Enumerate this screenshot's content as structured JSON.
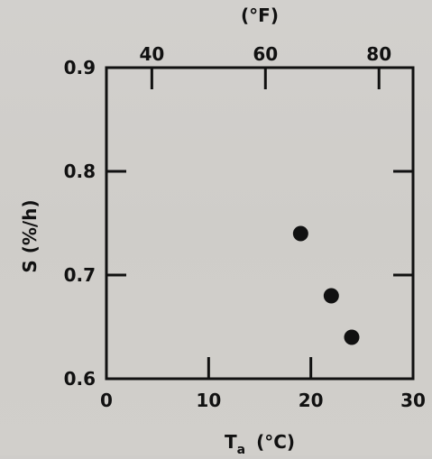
{
  "chart_data": {
    "type": "scatter",
    "title": "",
    "xlabel": "T",
    "xlabel_sub": "a",
    "xlabel_unit": "(°C)",
    "ylabel": "S (%/h)",
    "top_axis_label": "(°F)",
    "xlim": [
      0,
      30
    ],
    "ylim": [
      0.6,
      0.9
    ],
    "x_ticks": [
      0,
      10,
      20,
      30
    ],
    "x_tick_labels": [
      "0",
      "10",
      "20",
      "30"
    ],
    "y_ticks": [
      0.6,
      0.7,
      0.8,
      0.9
    ],
    "y_tick_labels": [
      "0.6",
      "0.7",
      "0.8",
      "0.9"
    ],
    "top_ticks_F": [
      40,
      60,
      80
    ],
    "top_tick_labels": [
      "40",
      "60",
      "80"
    ],
    "grid": false,
    "legend": "none",
    "marker_color": "#111111",
    "series": [
      {
        "x": [
          19,
          22,
          24
        ],
        "y": [
          0.74,
          0.68,
          0.64
        ]
      }
    ]
  }
}
